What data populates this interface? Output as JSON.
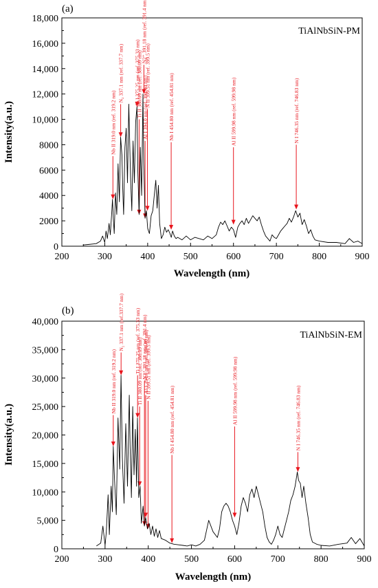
{
  "chart_data": [
    {
      "type": "line",
      "panel_label": "(a)",
      "title": "TiAlNbSiN-PM",
      "xlabel": "Wavelength (nm)",
      "ylabel": "Intensity(a.u.)",
      "xlim": [
        200,
        900
      ],
      "ylim": [
        0,
        18000
      ],
      "x_ticks": [
        200,
        300,
        400,
        500,
        600,
        700,
        800,
        900
      ],
      "y_ticks": [
        0,
        2000,
        4000,
        6000,
        8000,
        10000,
        12000,
        14000,
        16000,
        18000
      ],
      "y_tick_labels": [
        "0",
        "2000",
        "4000",
        "6000",
        "8000",
        "10,000",
        "12,000",
        "14,000",
        "16,000",
        "18,000"
      ],
      "grid": false,
      "line_color": "#000000",
      "annotation_color": "#e8141c",
      "x": [
        250,
        280,
        290,
        295,
        300,
        303,
        306,
        310,
        313,
        316,
        318,
        320,
        322,
        325,
        328,
        331,
        334,
        337,
        340,
        342,
        344,
        347,
        350,
        353,
        356,
        358,
        360,
        363,
        366,
        369,
        372,
        375,
        377,
        380,
        383,
        386,
        389,
        391,
        394,
        397,
        400,
        404,
        408,
        412,
        416,
        419,
        422,
        425,
        428,
        432,
        436,
        440,
        444,
        448,
        452,
        455,
        458,
        462,
        466,
        470,
        480,
        490,
        500,
        510,
        520,
        530,
        540,
        550,
        560,
        565,
        570,
        575,
        580,
        585,
        590,
        595,
        600,
        605,
        610,
        615,
        620,
        625,
        630,
        635,
        640,
        645,
        650,
        655,
        660,
        665,
        670,
        675,
        680,
        685,
        690,
        695,
        700,
        705,
        710,
        715,
        720,
        725,
        730,
        735,
        740,
        745,
        750,
        755,
        760,
        765,
        770,
        775,
        780,
        785,
        790,
        800,
        820,
        840,
        860,
        870,
        880,
        890,
        900
      ],
      "y": [
        100,
        200,
        400,
        800,
        300,
        1200,
        600,
        1800,
        900,
        2500,
        3700,
        2200,
        1000,
        4200,
        2500,
        6500,
        3500,
        8600,
        7200,
        4500,
        2500,
        7800,
        9300,
        5000,
        11200,
        8500,
        5500,
        2800,
        8300,
        5000,
        9800,
        11000,
        6000,
        2500,
        7800,
        4000,
        12000,
        6500,
        2200,
        2800,
        1400,
        1000,
        2400,
        2800,
        4200,
        5200,
        3000,
        4800,
        1800,
        600,
        900,
        1500,
        1100,
        1300,
        1000,
        700,
        1200,
        800,
        600,
        700,
        500,
        800,
        500,
        700,
        600,
        500,
        800,
        600,
        900,
        1500,
        1900,
        1700,
        2000,
        1600,
        1200,
        1500,
        1300,
        700,
        1500,
        1800,
        2000,
        1700,
        2200,
        1800,
        2100,
        2400,
        2200,
        2000,
        2300,
        1700,
        1200,
        800,
        600,
        400,
        900,
        700,
        600,
        900,
        1200,
        1400,
        1600,
        1800,
        2200,
        1900,
        2300,
        2800,
        2300,
        2600,
        1700,
        2100,
        1600,
        1000,
        1300,
        800,
        500,
        400,
        300,
        300,
        200,
        600,
        300,
        400,
        200
      ],
      "annotations": [
        {
          "label": "Nb II 319.0 nm (ref. 319.2 nm)",
          "x": 319.0,
          "tip_y": 3700,
          "text_y": 7100
        },
        {
          "label": "N₂ 337.1 nm (ref. 337.7 nm)",
          "x": 337.1,
          "tip_y": 8600,
          "text_y": 11200
        },
        {
          "label": "N2⁺ 391.18 nm (ref. 391.4 nm)",
          "x": 391.18,
          "tip_y": 12000,
          "text_y": 14300
        },
        {
          "label": "Ti I 375.25 nm (ref. 375.33 nm)",
          "x": 375.25,
          "tip_y": 11000,
          "text_y": 11000
        },
        {
          "label": "Ti II 380.09 nm (ref. 380.09 nm)",
          "x": 380.09,
          "tip_y": 2500,
          "text_y": 10000
        },
        {
          "label": "Al I 394.0 nm (ref. 394.40 nm)",
          "x": 394.0,
          "tip_y": 2200,
          "text_y": 8300
        },
        {
          "label": "N II 399.51 nm (ref. 399.5 nm)",
          "x": 399.51,
          "tip_y": 2800,
          "text_y": 10800
        },
        {
          "label": "Nb I 454.80 nm (ref. 454.81 nm)",
          "x": 454.8,
          "tip_y": 1300,
          "text_y": 8200
        },
        {
          "label": "Al II 599.98 nm (ref. 599.98 nm)",
          "x": 599.98,
          "tip_y": 1700,
          "text_y": 7800
        },
        {
          "label": "N I 746.35 nm (ref. 746.83 nm)",
          "x": 746.35,
          "tip_y": 2900,
          "text_y": 8000
        }
      ]
    },
    {
      "type": "line",
      "panel_label": "(b)",
      "title": "TiAlNbSiN-EM",
      "xlabel": "Wavelength (nm)",
      "ylabel": "Intensity(a.u.)",
      "xlim": [
        200,
        900
      ],
      "ylim": [
        0,
        40000
      ],
      "x_ticks": [
        200,
        300,
        400,
        500,
        600,
        700,
        800,
        900
      ],
      "y_ticks": [
        0,
        5000,
        10000,
        15000,
        20000,
        25000,
        30000,
        35000,
        40000
      ],
      "y_tick_labels": [
        "0",
        "5,000",
        "10,000",
        "15,000",
        "20,000",
        "25,000",
        "30,000",
        "35,000",
        "40,000"
      ],
      "grid": false,
      "line_color": "#000000",
      "annotation_color": "#e8141c",
      "x": [
        280,
        290,
        295,
        300,
        303,
        307,
        310,
        314,
        317,
        319,
        322,
        326,
        330,
        334,
        337,
        340,
        344,
        348,
        352,
        356,
        358,
        361,
        364,
        367,
        370,
        373,
        375,
        378,
        381,
        384,
        388,
        391,
        394,
        398,
        402,
        406,
        410,
        414,
        418,
        422,
        426,
        430,
        440,
        450,
        460,
        470,
        480,
        490,
        500,
        510,
        520,
        530,
        540,
        550,
        560,
        565,
        570,
        575,
        580,
        585,
        590,
        595,
        600,
        605,
        610,
        615,
        620,
        625,
        630,
        635,
        640,
        645,
        650,
        655,
        660,
        665,
        670,
        675,
        680,
        685,
        690,
        695,
        700,
        705,
        710,
        715,
        720,
        725,
        730,
        735,
        740,
        745,
        748,
        752,
        756,
        760,
        765,
        770,
        775,
        780,
        790,
        800,
        820,
        840,
        860,
        870,
        880,
        890,
        900
      ],
      "y": [
        500,
        1000,
        4000,
        600,
        3000,
        9500,
        2500,
        11000,
        6500,
        18000,
        12000,
        6000,
        23000,
        14000,
        30500,
        16000,
        8000,
        22000,
        11000,
        27000,
        18000,
        9000,
        25000,
        13000,
        21000,
        11000,
        23000,
        9000,
        11000,
        4500,
        7500,
        4000,
        5500,
        3500,
        4500,
        2500,
        4000,
        2200,
        3500,
        2000,
        3200,
        1800,
        1500,
        1000,
        800,
        700,
        600,
        500,
        700,
        500,
        800,
        1500,
        5000,
        3000,
        2000,
        3500,
        6500,
        7500,
        8000,
        7500,
        6500,
        5000,
        4000,
        2500,
        4500,
        7500,
        9000,
        8000,
        6500,
        9500,
        10500,
        9000,
        11000,
        9500,
        8000,
        6500,
        4000,
        2000,
        1200,
        800,
        1500,
        2500,
        4000,
        2500,
        2000,
        3500,
        5000,
        6500,
        8500,
        9500,
        11000,
        13500,
        12000,
        11500,
        9000,
        11000,
        8000,
        5500,
        2500,
        1200,
        800,
        600,
        500,
        800,
        1000,
        2000,
        900,
        1800,
        500
      ],
      "annotations": [
        {
          "label": "Nb II 319.0 nm (ref. 319.2 nm)",
          "x": 319.0,
          "tip_y": 18000,
          "text_y": 23500
        },
        {
          "label": "N₂ 337.1 nm (ref.337.7 nm)",
          "x": 337.1,
          "tip_y": 30500,
          "text_y": 34500
        },
        {
          "label": "Ti I 375.25 nm (ref. 375.33 nm)",
          "x": 375.25,
          "tip_y": 23000,
          "text_y": 30500
        },
        {
          "label": "Ti II 380.09 nm (ref. 380.09 nm)",
          "x": 380.09,
          "tip_y": 11000,
          "text_y": 25000
        },
        {
          "label": "N2⁺ 391.18 nm (ref. 391.4 nm)",
          "x": 391.18,
          "tip_y": 4000,
          "text_y": 29500
        },
        {
          "label": "Al I 394.0 nm (ref. 394.40 nm)",
          "x": 394.0,
          "tip_y": 5500,
          "text_y": 27000
        },
        {
          "label": "N II 399.51 nm (ref. 399.5 nm)",
          "x": 399.51,
          "tip_y": 3500,
          "text_y": 26000
        },
        {
          "label": "Nb I 454.80 nm (ref. 454.81 nm)",
          "x": 454.8,
          "tip_y": 1000,
          "text_y": 16500
        },
        {
          "label": "Al II 599.98 nm (ref. 599.98 nm)",
          "x": 599.98,
          "tip_y": 5500,
          "text_y": 21500
        },
        {
          "label": "N I 746.35 nm (ref. 746.83 nm)",
          "x": 746.35,
          "tip_y": 13500,
          "text_y": 17000
        }
      ]
    }
  ]
}
